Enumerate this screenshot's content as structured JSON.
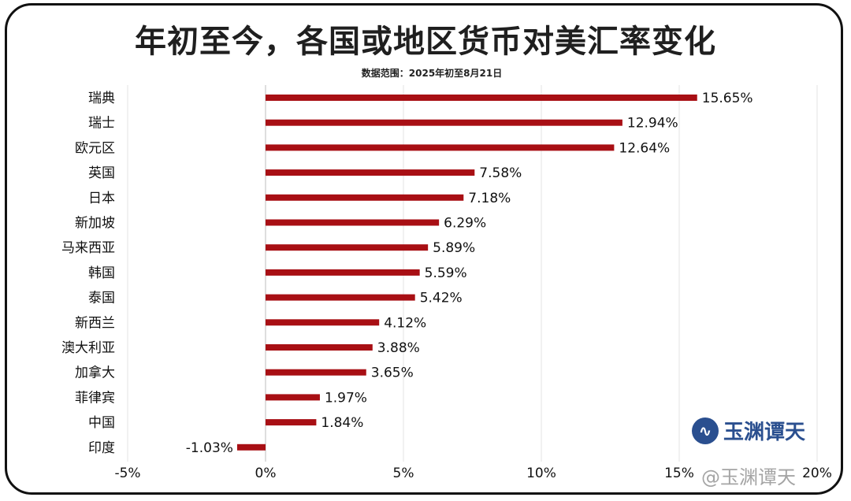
{
  "title": "年初至今，各国或地区货币对美汇率变化",
  "subtitle": "数据范围：2025年初至8月21日",
  "logo": {
    "icon": "wave-circle-icon",
    "text": "玉渊谭天"
  },
  "watermark": "@玉渊谭天",
  "chart_data": {
    "type": "bar",
    "orientation": "horizontal",
    "categories": [
      "瑞典",
      "瑞士",
      "欧元区",
      "英国",
      "日本",
      "新加坡",
      "马来西亚",
      "韩国",
      "泰国",
      "新西兰",
      "澳大利亚",
      "加拿大",
      "菲律宾",
      "中国",
      "印度"
    ],
    "values": [
      15.65,
      12.94,
      12.64,
      7.58,
      7.18,
      6.29,
      5.89,
      5.59,
      5.42,
      4.12,
      3.88,
      3.65,
      1.97,
      1.84,
      -1.03
    ],
    "value_labels": [
      "15.65%",
      "12.94%",
      "12.64%",
      "7.58%",
      "7.18%",
      "6.29%",
      "5.89%",
      "5.59%",
      "5.42%",
      "4.12%",
      "3.88%",
      "3.65%",
      "1.97%",
      "1.84%",
      "-1.03%"
    ],
    "x_ticks": [
      -5,
      0,
      5,
      10,
      15,
      20
    ],
    "x_tick_labels": [
      "-5%",
      "0%",
      "5%",
      "10%",
      "15%",
      "20%"
    ],
    "xlim": [
      -5,
      20
    ],
    "grid": "vertical",
    "bar_color": "#a80f14",
    "grid_color": "#e3e3e3",
    "axis_color": "#bdbdbd",
    "text_color": "#111111"
  }
}
